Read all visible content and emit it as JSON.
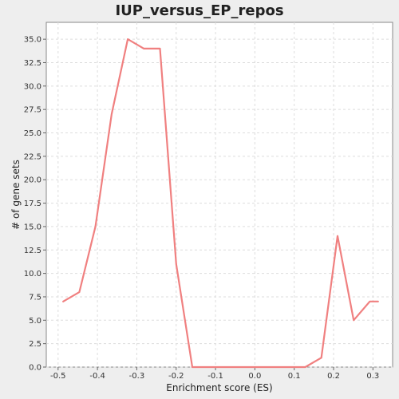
{
  "chart_data": {
    "type": "line",
    "title": "IUP_versus_EP_repos",
    "xlabel": "Enrichment score (ES)",
    "ylabel": "# of gene sets",
    "xlim": [
      -0.53,
      0.35
    ],
    "ylim": [
      0,
      36.8
    ],
    "grid": true,
    "x_ticks": [
      "-0.5",
      "-0.4",
      "-0.3",
      "-0.2",
      "-0.1",
      "0.0",
      "0.1",
      "0.2",
      "0.3"
    ],
    "x_tick_values": [
      -0.5,
      -0.4,
      -0.3,
      -0.2,
      -0.1,
      0.0,
      0.1,
      0.2,
      0.3
    ],
    "y_ticks": [
      "0.0",
      "2.5",
      "5.0",
      "7.5",
      "10.0",
      "12.5",
      "15.0",
      "17.5",
      "20.0",
      "22.5",
      "25.0",
      "27.5",
      "30.0",
      "32.5",
      "35.0"
    ],
    "y_tick_values": [
      0,
      2.5,
      5,
      7.5,
      10,
      12.5,
      15,
      17.5,
      20,
      22.5,
      25,
      27.5,
      30,
      32.5,
      35
    ],
    "series": [
      {
        "color": "#f08080",
        "x": [
          -0.487,
          -0.446,
          -0.405,
          -0.364,
          -0.323,
          -0.282,
          -0.241,
          -0.2,
          -0.159,
          -0.118,
          -0.077,
          -0.036,
          0.005,
          0.046,
          0.087,
          0.128,
          0.169,
          0.21,
          0.251,
          0.292,
          0.313
        ],
        "values": [
          7,
          8,
          15,
          27,
          35,
          34,
          34,
          11,
          0,
          0,
          0,
          0,
          0,
          0,
          0,
          0,
          1,
          14,
          5,
          7,
          7
        ]
      }
    ]
  }
}
